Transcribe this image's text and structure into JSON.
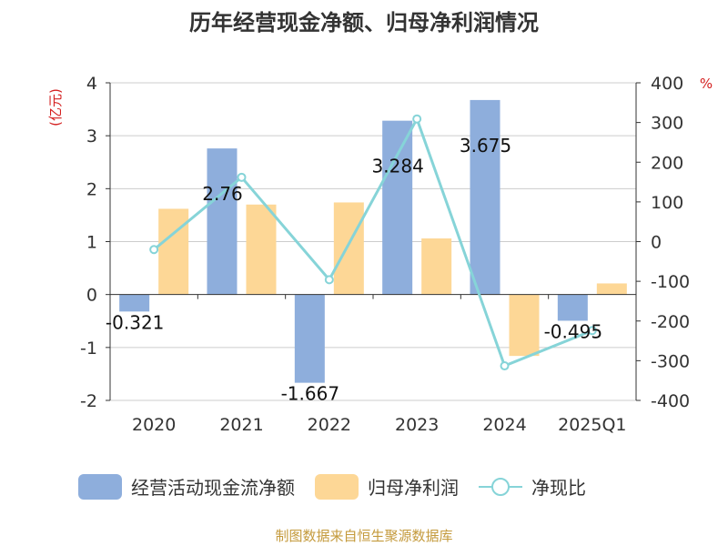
{
  "chart_data": {
    "type": "bar",
    "title": "历年经营现金净额、归母净利润情况",
    "categories": [
      "2020",
      "2021",
      "2022",
      "2023",
      "2024",
      "2025Q1"
    ],
    "y_left": {
      "unit": "(亿元)",
      "ticks": [
        4,
        3,
        2,
        1,
        0,
        -1,
        -2
      ],
      "range": [
        -2,
        4
      ]
    },
    "y_right": {
      "unit": "%",
      "ticks": [
        400,
        300,
        200,
        100,
        0,
        -100,
        -200,
        -300,
        -400
      ],
      "range": [
        -400,
        400
      ]
    },
    "series": [
      {
        "name": "经营活动现金流净额",
        "kind": "bar",
        "axis": "left",
        "color": "#8eaedc",
        "values": [
          -0.321,
          2.76,
          -1.667,
          3.284,
          3.675,
          -0.495
        ],
        "labels": [
          "-0.321",
          "2.76",
          "-1.667",
          "3.284",
          "3.675",
          "-0.495"
        ]
      },
      {
        "name": "归母净利润",
        "kind": "bar",
        "axis": "left",
        "color": "#fdd796",
        "values": [
          1.62,
          1.7,
          1.74,
          1.06,
          -1.16,
          0.21
        ]
      },
      {
        "name": "净现比",
        "kind": "line",
        "axis": "right",
        "color": "#86d4d8",
        "values": [
          -20,
          162,
          -96,
          309,
          -313,
          -224
        ]
      }
    ],
    "source": "制图数据来自恒生聚源数据库"
  }
}
